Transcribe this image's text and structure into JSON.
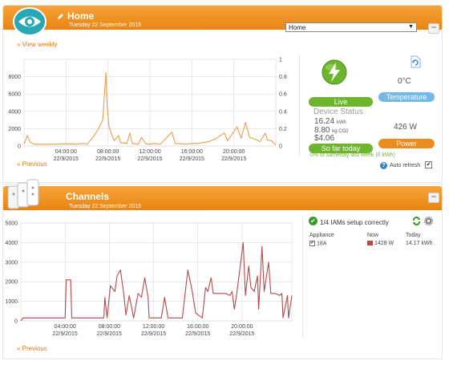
{
  "home": {
    "title": "Home",
    "date": "Tuesday 22 September 2015",
    "location_select": "Home",
    "view_weekly": "» View weekly",
    "previous": "« Previous",
    "collapse": "−",
    "status": {
      "live": "Live",
      "device_status": "Device Status",
      "kwh_value": "16.24",
      "kwh_unit": "kWh",
      "co2_value": "8.80",
      "co2_unit": "kg CO2",
      "cost": "$4.06",
      "so_far_today": "So far today",
      "temperature_value": "0°C",
      "temperature_label": "Temperature",
      "power_value": "426 W",
      "power_label": "Power",
      "sameday": "0% of sameday last week (0 kWh)",
      "auto_refresh": "Auto refresh"
    }
  },
  "channels": {
    "title": "Channels",
    "date": "Tuesday 22 September 2015",
    "previous": "« Previous",
    "collapse": "−",
    "setup": "1/4 IAMs setup correctly",
    "table": {
      "headers": [
        "Appliance",
        "Now",
        "Today"
      ],
      "rows": [
        {
          "name": "18A",
          "now": "1428 W",
          "today": "14.17 kWh",
          "color": "#b5484a"
        }
      ]
    }
  },
  "colors": {
    "accent": "#ec8c1e",
    "green": "#6cb52c",
    "blue": "#74b8e8",
    "home_line": "#e8a04a",
    "channel_line": "#b5484a"
  },
  "chart_data": [
    {
      "type": "line",
      "title": "",
      "y_left": {
        "ylim": [
          0,
          10000
        ],
        "ticks": [
          0,
          2000,
          4000,
          6000,
          8000
        ]
      },
      "y_right": {
        "ylim": [
          0,
          1
        ],
        "ticks": [
          0,
          0.2,
          0.4,
          0.6,
          0.8,
          1
        ]
      },
      "x_tick_labels": [
        [
          "04:00:00",
          "22/9/2015"
        ],
        [
          "08:00:00",
          "22/9/2015"
        ],
        [
          "12:00:00",
          "22/9/2015"
        ],
        [
          "16:00:00",
          "22/9/2015"
        ],
        [
          "20:00:00",
          "22/9/2015"
        ]
      ],
      "x_ticks_hours": [
        4,
        8,
        12,
        16,
        20
      ],
      "x_range_hours": [
        0,
        24
      ],
      "series": [
        {
          "values": [
            [
              0,
              200
            ],
            [
              0.3,
              1200
            ],
            [
              0.6,
              400
            ],
            [
              1,
              200
            ],
            [
              2,
              200
            ],
            [
              3,
              200
            ],
            [
              4,
              250
            ],
            [
              5,
              200
            ],
            [
              5.5,
              300
            ],
            [
              6,
              200
            ],
            [
              6.5,
              900
            ],
            [
              7,
              1800
            ],
            [
              7.3,
              2500
            ],
            [
              7.5,
              3000
            ],
            [
              7.7,
              6500
            ],
            [
              7.8,
              8500
            ],
            [
              7.9,
              5000
            ],
            [
              8.1,
              2200
            ],
            [
              8.3,
              1500
            ],
            [
              8.6,
              600
            ],
            [
              9,
              1200
            ],
            [
              9.2,
              400
            ],
            [
              9.8,
              300
            ],
            [
              10.1,
              1500
            ],
            [
              10.3,
              300
            ],
            [
              10.9,
              200
            ],
            [
              11.2,
              1000
            ],
            [
              11.6,
              250
            ],
            [
              12,
              200
            ],
            [
              12.4,
              300
            ],
            [
              13,
              200
            ],
            [
              14.1,
              1600
            ],
            [
              14.4,
              300
            ],
            [
              15,
              250
            ],
            [
              15.5,
              200
            ],
            [
              16,
              300
            ],
            [
              16.5,
              300
            ],
            [
              17.6,
              500
            ],
            [
              18.2,
              800
            ],
            [
              19.1,
              1500
            ],
            [
              19.4,
              600
            ],
            [
              20.3,
              2200
            ],
            [
              20.7,
              900
            ],
            [
              21.1,
              2700
            ],
            [
              21.5,
              1000
            ],
            [
              22,
              800
            ],
            [
              22.5,
              500
            ],
            [
              23,
              1500
            ],
            [
              23.2,
              700
            ],
            [
              23.6,
              600
            ],
            [
              24,
              100
            ]
          ]
        }
      ]
    },
    {
      "type": "line",
      "title": "",
      "ylim": [
        0,
        5000
      ],
      "y_ticks": [
        0,
        1000,
        2000,
        3000,
        4000,
        5000
      ],
      "x_tick_labels": [
        [
          "04:00:00",
          "22/9/2015"
        ],
        [
          "08:00:00",
          "22/9/2015"
        ],
        [
          "12:00:00",
          "22/9/2015"
        ],
        [
          "16:00:00",
          "22/9/2015"
        ],
        [
          "20:00:00",
          "22/9/2015"
        ]
      ],
      "x_ticks_hours": [
        4,
        8,
        12,
        16,
        20
      ],
      "x_range_hours": [
        0,
        24.5
      ],
      "series": [
        {
          "name": "18A",
          "values": [
            [
              0,
              0
            ],
            [
              0.2,
              150
            ],
            [
              3,
              150
            ],
            [
              4,
              150
            ],
            [
              4.1,
              2100
            ],
            [
              4.5,
              2100
            ],
            [
              4.6,
              150
            ],
            [
              6,
              150
            ],
            [
              7.5,
              150
            ],
            [
              7.6,
              1200
            ],
            [
              7.8,
              150
            ],
            [
              8.1,
              1800
            ],
            [
              8.5,
              1500
            ],
            [
              8.7,
              2300
            ],
            [
              9,
              2600
            ],
            [
              9.3,
              1400
            ],
            [
              9.5,
              300
            ],
            [
              9.8,
              1300
            ],
            [
              10.2,
              150
            ],
            [
              10.6,
              1400
            ],
            [
              10.9,
              1200
            ],
            [
              11.2,
              2200
            ],
            [
              11.5,
              1200
            ],
            [
              11.6,
              150
            ],
            [
              12.2,
              150
            ],
            [
              12.7,
              150
            ],
            [
              13,
              1200
            ],
            [
              13.3,
              150
            ],
            [
              14,
              150
            ],
            [
              14.6,
              150
            ],
            [
              15.1,
              2600
            ],
            [
              15.5,
              1500
            ],
            [
              15.8,
              400
            ],
            [
              16.4,
              150
            ],
            [
              16.7,
              1700
            ],
            [
              16.9,
              1500
            ],
            [
              17.2,
              2200
            ],
            [
              17.4,
              1400
            ],
            [
              18,
              1400
            ],
            [
              18.5,
              1400
            ],
            [
              18.9,
              1300
            ],
            [
              19.1,
              1500
            ],
            [
              19.3,
              600
            ],
            [
              19.5,
              1300
            ],
            [
              20.1,
              4000
            ],
            [
              20.3,
              1300
            ],
            [
              20.6,
              2800
            ],
            [
              20.8,
              1700
            ],
            [
              21.1,
              1500
            ],
            [
              21.4,
              2300
            ],
            [
              21.5,
              600
            ],
            [
              21.8,
              3800
            ],
            [
              22,
              1500
            ],
            [
              22.4,
              3000
            ],
            [
              22.6,
              1400
            ],
            [
              23,
              1400
            ],
            [
              23.4,
              1300
            ],
            [
              23.6,
              1400
            ],
            [
              23.7,
              150
            ],
            [
              24.1,
              1300
            ],
            [
              24.2,
              150
            ],
            [
              24.5,
              1300
            ]
          ]
        }
      ]
    }
  ]
}
